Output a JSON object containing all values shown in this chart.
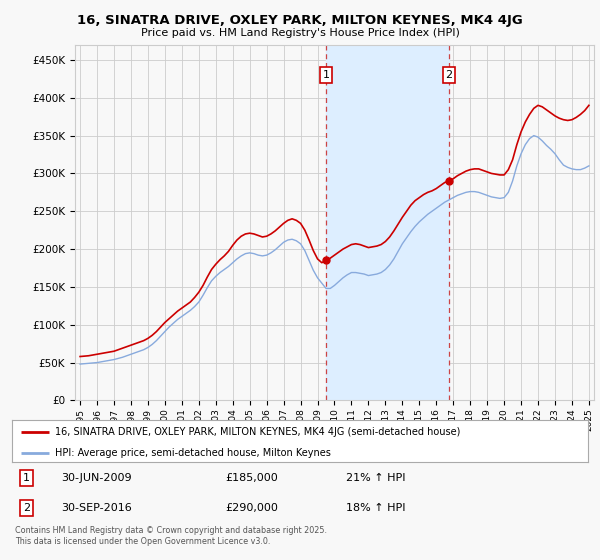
{
  "title": "16, SINATRA DRIVE, OXLEY PARK, MILTON KEYNES, MK4 4JG",
  "subtitle": "Price paid vs. HM Land Registry's House Price Index (HPI)",
  "ylabel_ticks": [
    "£0",
    "£50K",
    "£100K",
    "£150K",
    "£200K",
    "£250K",
    "£300K",
    "£350K",
    "£400K",
    "£450K"
  ],
  "ytick_values": [
    0,
    50000,
    100000,
    150000,
    200000,
    250000,
    300000,
    350000,
    400000,
    450000
  ],
  "ylim": [
    0,
    470000
  ],
  "xlim_start": 1994.7,
  "xlim_end": 2025.3,
  "marker1_x": 2009.5,
  "marker1_y": 185000,
  "marker1_dot_y": 185000,
  "marker1_label": "1",
  "marker2_x": 2016.75,
  "marker2_y": 290000,
  "marker2_dot_y": 290000,
  "marker2_label": "2",
  "shaded_x1": 2009.5,
  "shaded_x2": 2016.75,
  "red_line_color": "#cc0000",
  "blue_line_color": "#88aadd",
  "shade_color": "#ddeeff",
  "grid_color": "#cccccc",
  "background_color": "#f8f8f8",
  "legend_label_red": "16, SINATRA DRIVE, OXLEY PARK, MILTON KEYNES, MK4 4JG (semi-detached house)",
  "legend_label_blue": "HPI: Average price, semi-detached house, Milton Keynes",
  "annotation1_date": "30-JUN-2009",
  "annotation1_price": "£185,000",
  "annotation1_hpi": "21% ↑ HPI",
  "annotation2_date": "30-SEP-2016",
  "annotation2_price": "£290,000",
  "annotation2_hpi": "18% ↑ HPI",
  "footer": "Contains HM Land Registry data © Crown copyright and database right 2025.\nThis data is licensed under the Open Government Licence v3.0.",
  "hpi_red_years": [
    1995.0,
    1995.25,
    1995.5,
    1995.75,
    1996.0,
    1996.25,
    1996.5,
    1996.75,
    1997.0,
    1997.25,
    1997.5,
    1997.75,
    1998.0,
    1998.25,
    1998.5,
    1998.75,
    1999.0,
    1999.25,
    1999.5,
    1999.75,
    2000.0,
    2000.25,
    2000.5,
    2000.75,
    2001.0,
    2001.25,
    2001.5,
    2001.75,
    2002.0,
    2002.25,
    2002.5,
    2002.75,
    2003.0,
    2003.25,
    2003.5,
    2003.75,
    2004.0,
    2004.25,
    2004.5,
    2004.75,
    2005.0,
    2005.25,
    2005.5,
    2005.75,
    2006.0,
    2006.25,
    2006.5,
    2006.75,
    2007.0,
    2007.25,
    2007.5,
    2007.75,
    2008.0,
    2008.25,
    2008.5,
    2008.75,
    2009.0,
    2009.25,
    2009.5,
    2009.75,
    2010.0,
    2010.25,
    2010.5,
    2010.75,
    2011.0,
    2011.25,
    2011.5,
    2011.75,
    2012.0,
    2012.25,
    2012.5,
    2012.75,
    2013.0,
    2013.25,
    2013.5,
    2013.75,
    2014.0,
    2014.25,
    2014.5,
    2014.75,
    2015.0,
    2015.25,
    2015.5,
    2015.75,
    2016.0,
    2016.25,
    2016.5,
    2016.75,
    2017.0,
    2017.25,
    2017.5,
    2017.75,
    2018.0,
    2018.25,
    2018.5,
    2018.75,
    2019.0,
    2019.25,
    2019.5,
    2019.75,
    2020.0,
    2020.25,
    2020.5,
    2020.75,
    2021.0,
    2021.25,
    2021.5,
    2021.75,
    2022.0,
    2022.25,
    2022.5,
    2022.75,
    2023.0,
    2023.25,
    2023.5,
    2023.75,
    2024.0,
    2024.25,
    2024.5,
    2024.75,
    2025.0
  ],
  "hpi_red_values": [
    58000,
    58500,
    59000,
    60000,
    61000,
    62000,
    63000,
    64000,
    65000,
    67000,
    69000,
    71000,
    73000,
    75000,
    77000,
    79000,
    82000,
    86000,
    91000,
    97000,
    103000,
    108000,
    113000,
    118000,
    122000,
    126000,
    130000,
    136000,
    143000,
    152000,
    163000,
    173000,
    180000,
    186000,
    191000,
    197000,
    205000,
    212000,
    217000,
    220000,
    221000,
    220000,
    218000,
    216000,
    217000,
    220000,
    224000,
    229000,
    234000,
    238000,
    240000,
    238000,
    234000,
    225000,
    212000,
    198000,
    187000,
    182000,
    185000,
    188000,
    192000,
    196000,
    200000,
    203000,
    206000,
    207000,
    206000,
    204000,
    202000,
    203000,
    204000,
    206000,
    210000,
    216000,
    224000,
    233000,
    242000,
    250000,
    258000,
    264000,
    268000,
    272000,
    275000,
    277000,
    280000,
    284000,
    288000,
    290000,
    293000,
    297000,
    300000,
    303000,
    305000,
    306000,
    306000,
    304000,
    302000,
    300000,
    299000,
    298000,
    298000,
    305000,
    318000,
    338000,
    355000,
    368000,
    378000,
    386000,
    390000,
    388000,
    384000,
    380000,
    376000,
    373000,
    371000,
    370000,
    371000,
    374000,
    378000,
    383000,
    390000
  ],
  "hpi_blue_years": [
    1995.0,
    1995.25,
    1995.5,
    1995.75,
    1996.0,
    1996.25,
    1996.5,
    1996.75,
    1997.0,
    1997.25,
    1997.5,
    1997.75,
    1998.0,
    1998.25,
    1998.5,
    1998.75,
    1999.0,
    1999.25,
    1999.5,
    1999.75,
    2000.0,
    2000.25,
    2000.5,
    2000.75,
    2001.0,
    2001.25,
    2001.5,
    2001.75,
    2002.0,
    2002.25,
    2002.5,
    2002.75,
    2003.0,
    2003.25,
    2003.5,
    2003.75,
    2004.0,
    2004.25,
    2004.5,
    2004.75,
    2005.0,
    2005.25,
    2005.5,
    2005.75,
    2006.0,
    2006.25,
    2006.5,
    2006.75,
    2007.0,
    2007.25,
    2007.5,
    2007.75,
    2008.0,
    2008.25,
    2008.5,
    2008.75,
    2009.0,
    2009.25,
    2009.5,
    2009.75,
    2010.0,
    2010.25,
    2010.5,
    2010.75,
    2011.0,
    2011.25,
    2011.5,
    2011.75,
    2012.0,
    2012.25,
    2012.5,
    2012.75,
    2013.0,
    2013.25,
    2013.5,
    2013.75,
    2014.0,
    2014.25,
    2014.5,
    2014.75,
    2015.0,
    2015.25,
    2015.5,
    2015.75,
    2016.0,
    2016.25,
    2016.5,
    2016.75,
    2017.0,
    2017.25,
    2017.5,
    2017.75,
    2018.0,
    2018.25,
    2018.5,
    2018.75,
    2019.0,
    2019.25,
    2019.5,
    2019.75,
    2020.0,
    2020.25,
    2020.5,
    2020.75,
    2021.0,
    2021.25,
    2021.5,
    2021.75,
    2022.0,
    2022.25,
    2022.5,
    2022.75,
    2023.0,
    2023.25,
    2023.5,
    2023.75,
    2024.0,
    2024.25,
    2024.5,
    2024.75,
    2025.0
  ],
  "hpi_blue_values": [
    48000,
    48500,
    49000,
    49500,
    50000,
    51000,
    52000,
    53000,
    54000,
    55500,
    57000,
    59000,
    61000,
    63000,
    65000,
    67000,
    70000,
    74000,
    79000,
    85000,
    91000,
    97000,
    102000,
    107000,
    111000,
    115000,
    119000,
    124000,
    130000,
    139000,
    149000,
    158000,
    164000,
    169000,
    173000,
    177000,
    182000,
    187000,
    191000,
    194000,
    195000,
    194000,
    192000,
    191000,
    192000,
    195000,
    199000,
    204000,
    209000,
    212000,
    213000,
    211000,
    207000,
    198000,
    185000,
    172000,
    162000,
    155000,
    148000,
    148000,
    152000,
    157000,
    162000,
    166000,
    169000,
    169000,
    168000,
    167000,
    165000,
    166000,
    167000,
    169000,
    173000,
    179000,
    187000,
    197000,
    207000,
    215000,
    223000,
    230000,
    236000,
    241000,
    246000,
    250000,
    254000,
    258000,
    262000,
    265000,
    268000,
    271000,
    273000,
    275000,
    276000,
    276000,
    275000,
    273000,
    271000,
    269000,
    268000,
    267000,
    268000,
    275000,
    290000,
    310000,
    326000,
    338000,
    346000,
    350000,
    348000,
    343000,
    337000,
    332000,
    326000,
    318000,
    311000,
    308000,
    306000,
    305000,
    305000,
    307000,
    310000
  ]
}
